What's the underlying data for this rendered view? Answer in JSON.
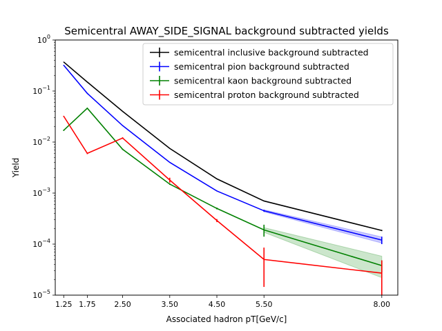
{
  "chart_data": {
    "type": "line",
    "title": "Semicentral AWAY_SIDE_SIGNAL background subtracted yields",
    "xlabel": "Associated hadron pT[GeV/c]",
    "ylabel": "Yield",
    "x": [
      1.25,
      1.75,
      2.5,
      3.5,
      4.5,
      5.5,
      8.0
    ],
    "xlim": [
      1.07,
      8.34
    ],
    "ylim": [
      1e-05,
      1.0
    ],
    "yscale": "log",
    "xticks": [
      1.25,
      1.75,
      2.5,
      3.5,
      4.5,
      5.5,
      8.0
    ],
    "xtick_labels": [
      "1.25",
      "1.75",
      "2.50",
      "3.50",
      "4.50",
      "5.50",
      "8.00"
    ],
    "yticks": [
      {
        "value": 1e-05,
        "base": "10",
        "exp": "−5"
      },
      {
        "value": 0.0001,
        "base": "10",
        "exp": "−4"
      },
      {
        "value": 0.001,
        "base": "10",
        "exp": "−3"
      },
      {
        "value": 0.01,
        "base": "10",
        "exp": "−2"
      },
      {
        "value": 0.1,
        "base": "10",
        "exp": "−1"
      },
      {
        "value": 1.0,
        "base": "10",
        "exp": "0"
      }
    ],
    "grid": false,
    "legend_position": "top-right",
    "series": [
      {
        "name": "semicentral inclusive background subtracted",
        "color": "#000000",
        "values": [
          0.37,
          0.15,
          0.04,
          0.0075,
          0.0019,
          0.0007,
          0.000185
        ],
        "errors": [
          0.005,
          0.002,
          0.0005,
          8e-05,
          2e-05,
          1e-05,
          5e-06
        ],
        "band": []
      },
      {
        "name": "semicentral pion background subtracted",
        "color": "#0000ff",
        "values": [
          0.32,
          0.09,
          0.021,
          0.004,
          0.0011,
          0.00045,
          0.00012
        ],
        "errors": [
          0.005,
          0.0015,
          0.0003,
          6e-05,
          2e-05,
          2e-05,
          2e-05
        ],
        "band": [
          {
            "x": 5.5,
            "lo": 0.00043,
            "hi": 0.00047
          },
          {
            "x": 8.0,
            "lo": 0.000105,
            "hi": 0.000138
          }
        ]
      },
      {
        "name": "semicentral kaon background subtracted",
        "color": "#008000",
        "values": [
          0.017,
          0.046,
          0.0072,
          0.0015,
          0.0005,
          0.00019,
          3.8e-05
        ],
        "errors": [
          0.0005,
          0.001,
          0.0002,
          5e-05,
          2e-05,
          5e-05,
          1e-05
        ],
        "band": [
          {
            "x": 5.5,
            "lo": 0.00017,
            "hi": 0.00021
          },
          {
            "x": 8.0,
            "lo": 2.2e-05,
            "hi": 5.8e-05
          }
        ]
      },
      {
        "name": "semicentral proton background subtracted",
        "color": "#ff0000",
        "values": [
          0.032,
          0.006,
          0.012,
          0.0018,
          0.00029,
          5e-05,
          2.7e-05
        ],
        "errors": [
          0.0007,
          0.0002,
          0.0004,
          0.0002,
          2e-05,
          3.55e-05,
          2.1e-05
        ],
        "band": []
      }
    ]
  }
}
